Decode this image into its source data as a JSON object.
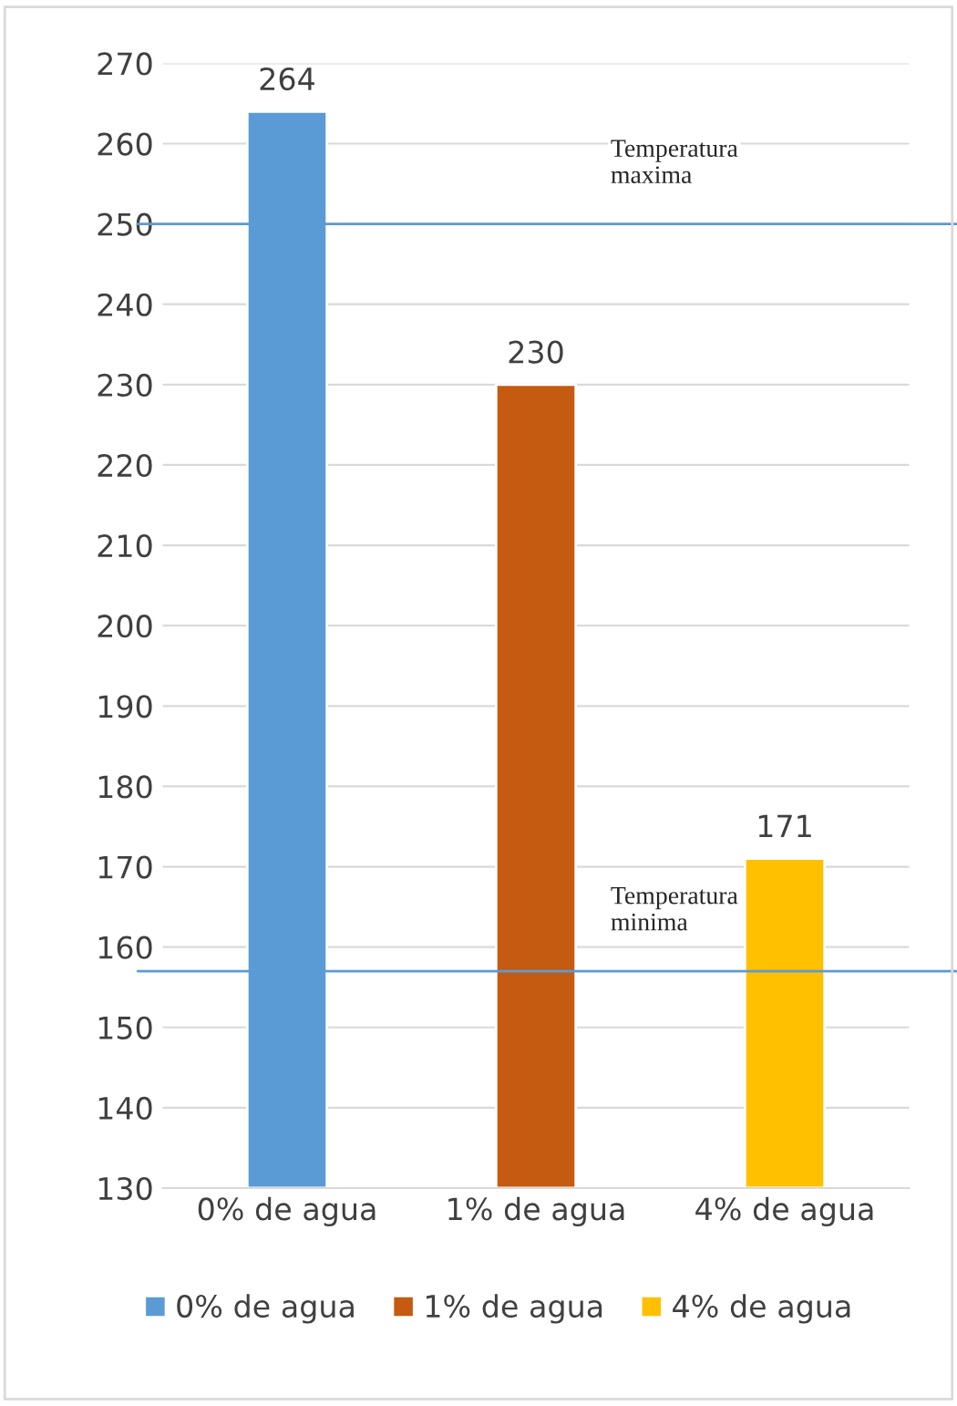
{
  "chart_data": {
    "type": "bar",
    "categories": [
      "0% de agua",
      "1% de agua",
      "4% de agua"
    ],
    "series": [
      {
        "name": "0% de agua",
        "color": "#5b9bd5",
        "values": [
          264,
          null,
          null
        ]
      },
      {
        "name": "1% de agua",
        "color": "#c55a11",
        "values": [
          null,
          230,
          null
        ]
      },
      {
        "name": "4% de agua",
        "color": "#ffc000",
        "values": [
          null,
          null,
          171
        ]
      }
    ],
    "ylim": [
      130,
      270
    ],
    "yticks": [
      130,
      140,
      150,
      160,
      170,
      180,
      190,
      200,
      210,
      220,
      230,
      240,
      250,
      260,
      270
    ],
    "grid": "y",
    "legend": "bottom",
    "data_labels": true,
    "ref_lines": [
      {
        "axis": "y",
        "value": 250,
        "label": "Temperatura\nmaxima",
        "color": "#5b9bd5",
        "line_style": "solid"
      },
      {
        "axis": "y",
        "value": 157,
        "label": "Temperatura\nminima",
        "color": "#5b9bd5",
        "line_style": "solid"
      }
    ]
  }
}
